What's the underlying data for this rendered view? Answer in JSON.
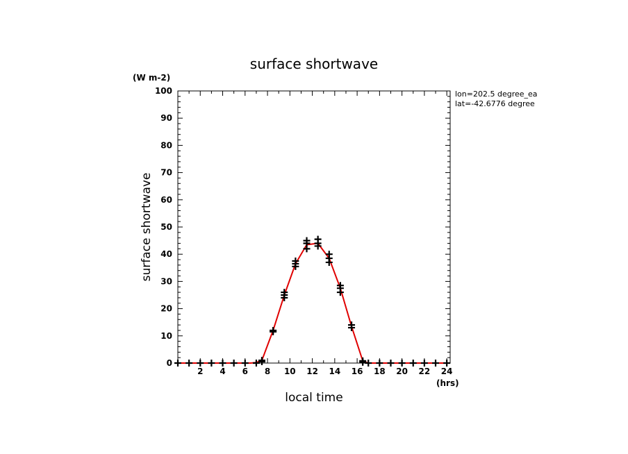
{
  "chart_data": {
    "type": "line",
    "title": "surface shortwave",
    "xlabel": "local time",
    "ylabel": "surface shortwave",
    "y_unit": "(W m-2)",
    "x_unit": "(hrs)",
    "annotations": [
      "lon=202.5 degree_ea",
      "lat=-42.6776 degree"
    ],
    "xlim": [
      0,
      24.3
    ],
    "ylim": [
      0,
      100
    ],
    "x_ticks": [
      2,
      4,
      6,
      8,
      10,
      12,
      14,
      16,
      18,
      20,
      22,
      24
    ],
    "y_ticks": [
      0,
      10,
      20,
      30,
      40,
      50,
      60,
      70,
      80,
      90,
      100
    ],
    "grid": false,
    "colors": {
      "line": "#e00000",
      "markers": "#000000"
    },
    "series": [
      {
        "style": "line",
        "x": [
          0,
          1,
          2,
          3,
          4,
          5,
          6,
          6.5,
          7,
          7.5,
          8.5,
          9.5,
          10.5,
          11.5,
          12.5,
          13.5,
          14.5,
          15.5,
          16.5,
          17,
          18,
          19,
          20,
          21,
          22,
          23,
          24.3
        ],
        "y": [
          0,
          0,
          0,
          0,
          0,
          0,
          0,
          0,
          0.2,
          1.0,
          12.0,
          25.0,
          36.5,
          43.5,
          44.0,
          38.5,
          27.5,
          13.5,
          0.8,
          0,
          0,
          0,
          0,
          0,
          0,
          0,
          0
        ]
      },
      {
        "style": "markers",
        "x": [
          0,
          1,
          2,
          3,
          4,
          5,
          6,
          7,
          7.5,
          7.5,
          8.5,
          8.5,
          9.5,
          9.5,
          9.5,
          10.5,
          10.5,
          10.5,
          11.5,
          11.5,
          11.5,
          12.5,
          12.5,
          12.5,
          13.5,
          13.5,
          13.5,
          14.5,
          14.5,
          14.5,
          15.5,
          15.5,
          16.5,
          16.5,
          17,
          18,
          19,
          20,
          21,
          22,
          23,
          24
        ],
        "y": [
          0,
          0,
          0,
          0,
          0,
          0,
          0,
          0,
          1.0,
          0.5,
          12.0,
          11.5,
          24.0,
          25.0,
          26.0,
          35.5,
          36.5,
          37.5,
          42.0,
          44.0,
          45.0,
          43.0,
          44.0,
          45.5,
          37.0,
          38.5,
          40.0,
          26.0,
          27.5,
          28.5,
          13.0,
          14.0,
          0.8,
          0.3,
          0,
          0,
          0,
          0,
          0,
          0,
          0,
          0
        ]
      }
    ]
  }
}
